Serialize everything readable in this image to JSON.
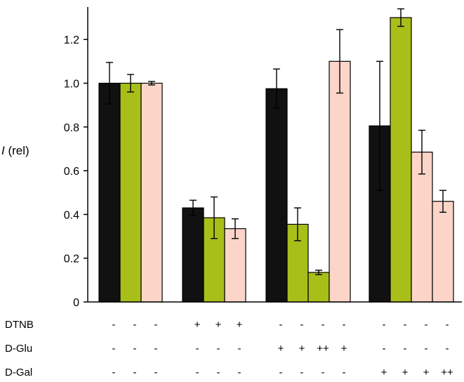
{
  "chart_data": {
    "type": "bar",
    "ylabel_symbol": "I",
    "ylabel_unit": " (rel)",
    "ylim": [
      0,
      1.35
    ],
    "yticks": [
      {
        "value": 0,
        "label": "0"
      },
      {
        "value": 0.2,
        "label": "0.2"
      },
      {
        "value": 0.4,
        "label": "0.4"
      },
      {
        "value": 0.6,
        "label": "0.6"
      },
      {
        "value": 0.8,
        "label": "0.8"
      },
      {
        "value": 1.0,
        "label": "1.0"
      },
      {
        "value": 1.2,
        "label": "1.2"
      }
    ],
    "grid": false,
    "legend": "none",
    "colors": {
      "black": "#111111",
      "green": "#a8bf1a",
      "pink": "#fcd5c8"
    },
    "groups": [
      {
        "bars": [
          {
            "value": 1.0,
            "err": 0.095,
            "color": "black"
          },
          {
            "value": 1.0,
            "err": 0.04,
            "color": "green"
          },
          {
            "value": 1.0,
            "err": 0.008,
            "color": "pink"
          }
        ]
      },
      {
        "bars": [
          {
            "value": 0.43,
            "err": 0.035,
            "color": "black"
          },
          {
            "value": 0.385,
            "err": 0.095,
            "color": "green"
          },
          {
            "value": 0.335,
            "err": 0.045,
            "color": "pink"
          }
        ]
      },
      {
        "bars": [
          {
            "value": 0.975,
            "err": 0.09,
            "color": "black"
          },
          {
            "value": 0.355,
            "err": 0.075,
            "color": "green"
          },
          {
            "value": 0.135,
            "err": 0.01,
            "color": "green"
          },
          {
            "value": 1.1,
            "err": 0.145,
            "color": "pink"
          }
        ]
      },
      {
        "bars": [
          {
            "value": 0.805,
            "err": 0.295,
            "color": "black"
          },
          {
            "value": 1.3,
            "err": 0.04,
            "color": "green"
          },
          {
            "value": 0.685,
            "err": 0.1,
            "color": "pink"
          },
          {
            "value": 0.46,
            "err": 0.05,
            "color": "pink"
          }
        ]
      }
    ],
    "conditions": [
      {
        "label": "DTNB",
        "marks": [
          [
            "-",
            "-",
            "-"
          ],
          [
            "+",
            "+",
            "+"
          ],
          [
            "-",
            "-",
            "-",
            "-"
          ],
          [
            "-",
            "-",
            "-",
            "-"
          ]
        ]
      },
      {
        "label": "D-Glu",
        "marks": [
          [
            "-",
            "-",
            "-"
          ],
          [
            "-",
            "-",
            "-"
          ],
          [
            "+",
            "+",
            "++",
            "+"
          ],
          [
            "-",
            "-",
            "-",
            "-"
          ]
        ]
      },
      {
        "label": "D-Gal",
        "marks": [
          [
            "-",
            "-",
            "-"
          ],
          [
            "-",
            "-",
            "-"
          ],
          [
            "-",
            "-",
            "-",
            "-"
          ],
          [
            "+",
            "+",
            "+",
            "++"
          ]
        ]
      }
    ]
  }
}
